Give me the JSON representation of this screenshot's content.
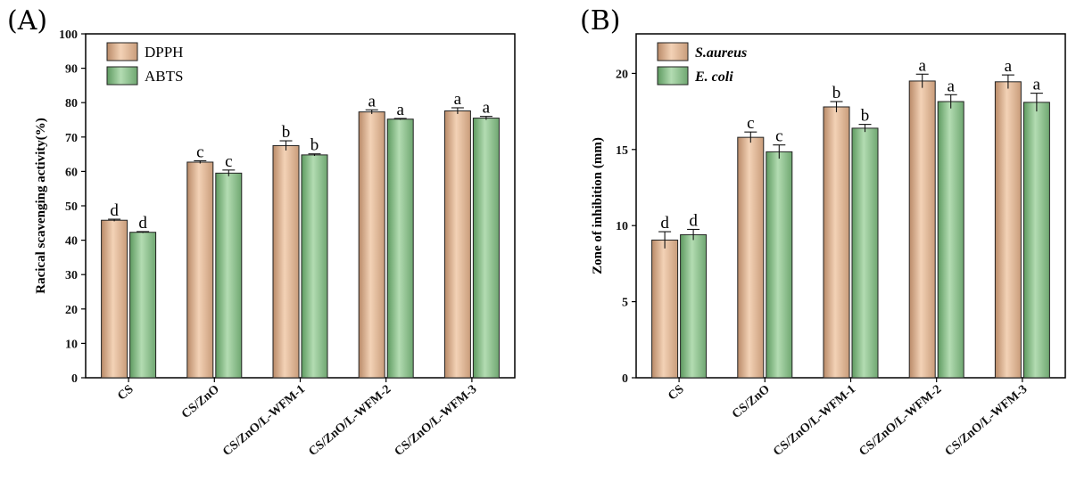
{
  "chart_data": [
    {
      "panel": "(A)",
      "type": "bar",
      "categories": [
        "CS",
        "CS/ZnO",
        "CS/ZnO/L-WFM-1",
        "CS/ZnO/L-WFM-2",
        "CS/ZnO/L-WFM-3"
      ],
      "ylabel": "Racical scavenging activity(%)",
      "xlabel": "",
      "ylim": [
        0,
        100
      ],
      "yticks": [
        0,
        10,
        20,
        30,
        40,
        50,
        60,
        70,
        80,
        90,
        100
      ],
      "legend_position": "top-left",
      "grid": false,
      "series": [
        {
          "name": "DPPH",
          "color": "#e5b896",
          "values": [
            45.8,
            62.7,
            67.5,
            77.3,
            77.6
          ],
          "errors": [
            0.3,
            0.4,
            1.4,
            0.6,
            0.9
          ],
          "letters": [
            "d",
            "c",
            "b",
            "a",
            "a"
          ]
        },
        {
          "name": "ABTS",
          "color": "#8dc08e",
          "values": [
            42.3,
            59.5,
            64.8,
            75.2,
            75.5
          ],
          "errors": [
            0.2,
            0.9,
            0.3,
            0.2,
            0.5
          ],
          "letters": [
            "d",
            "c",
            "b",
            "a",
            "a"
          ]
        }
      ]
    },
    {
      "panel": "(B)",
      "type": "bar",
      "categories": [
        "CS",
        "CS/ZnO",
        "CS/ZnO/L-WFM-1",
        "CS/ZnO/L-WFM-2",
        "CS/ZnO/L-WFM-3"
      ],
      "ylabel": "Zone of inhibition (mm)",
      "xlabel": "",
      "ylim": [
        0,
        22.6
      ],
      "yticks": [
        0,
        5,
        10,
        15,
        20
      ],
      "legend_position": "top-left",
      "grid": false,
      "series": [
        {
          "name": "S.aureus",
          "color": "#e5b896",
          "values": [
            9.05,
            15.8,
            17.8,
            19.5,
            19.45
          ],
          "errors": [
            0.55,
            0.35,
            0.35,
            0.45,
            0.45
          ],
          "letters": [
            "d",
            "c",
            "b",
            "a",
            "a"
          ]
        },
        {
          "name": "E. coli",
          "color": "#8dc08e",
          "values": [
            9.4,
            14.85,
            16.4,
            18.15,
            18.1
          ],
          "errors": [
            0.35,
            0.45,
            0.25,
            0.45,
            0.6
          ],
          "letters": [
            "d",
            "c",
            "b",
            "a",
            "a"
          ]
        }
      ]
    }
  ]
}
